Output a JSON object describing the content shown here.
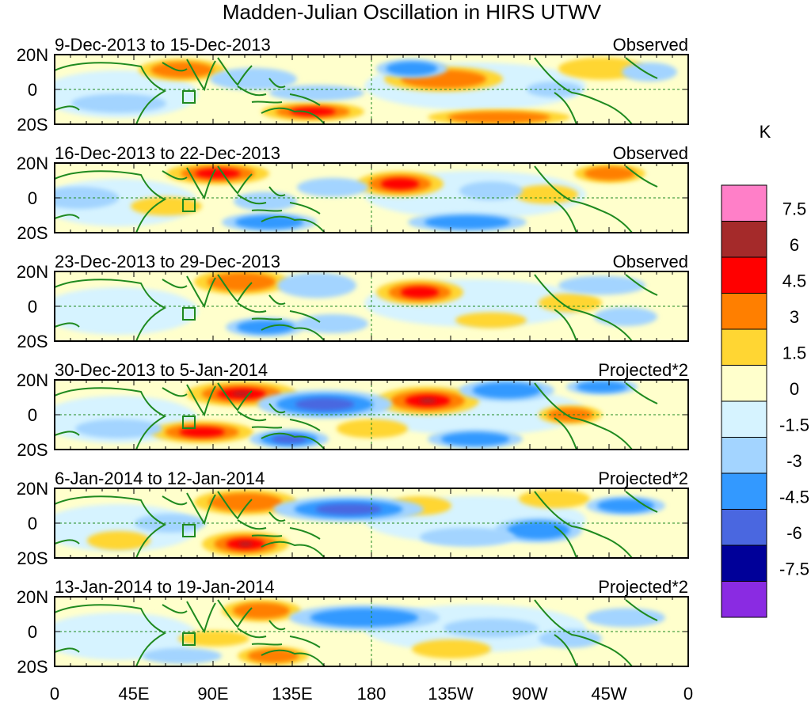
{
  "title": "Madden-Julian Oscillation in HIRS UTWV",
  "latitude_labels": [
    "20N",
    "0",
    "20S"
  ],
  "longitude_labels": [
    "0",
    "45E",
    "90E",
    "135E",
    "180",
    "135W",
    "90W",
    "45W",
    "0"
  ],
  "panels": [
    {
      "date_range": "9-Dec-2013 to 15-Dec-2013",
      "kind": "Observed"
    },
    {
      "date_range": "16-Dec-2013 to 22-Dec-2013",
      "kind": "Observed"
    },
    {
      "date_range": "23-Dec-2013 to 29-Dec-2013",
      "kind": "Observed"
    },
    {
      "date_range": "30-Dec-2013 to 5-Jan-2014",
      "kind": "Projected*2"
    },
    {
      "date_range": "6-Jan-2014 to 12-Jan-2014",
      "kind": "Projected*2"
    },
    {
      "date_range": "13-Jan-2014 to 19-Jan-2014",
      "kind": "Projected*2"
    }
  ],
  "colorbar": {
    "unit": "K",
    "labels": [
      "7.5",
      "6",
      "4.5",
      "3",
      "1.5",
      "0",
      "-1.5",
      "-3",
      "-4.5",
      "-6",
      "-7.5"
    ],
    "colors_top_to_bottom": [
      "#ff7fc8",
      "#a52a2a",
      "#ff0000",
      "#ff7f00",
      "#ffd633",
      "#ffffcc",
      "#d6f3ff",
      "#a3d4ff",
      "#3399ff",
      "#4a67e0",
      "#000099",
      "#8a2be2"
    ]
  },
  "colors": {
    "coast": "#1f8a1f",
    "reference_lines": "#1f8a1f"
  }
}
